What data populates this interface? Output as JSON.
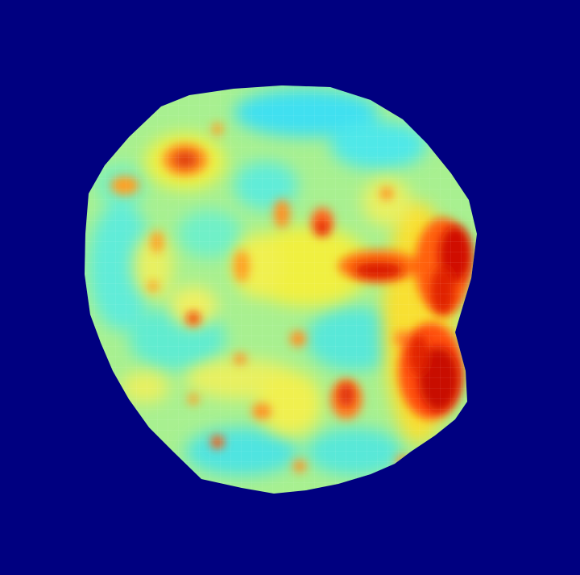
{
  "image": {
    "kind": "jet-colormap heatmap of a circular specimen",
    "colormap": "jet",
    "colors": {
      "background": "#000080",
      "low": "#30e0e8",
      "mid_low": "#90f0a0",
      "mid": "#f0f040",
      "mid_high": "#ffb020",
      "high": "#ff3010",
      "max": "#c80000"
    },
    "labels_visible": false
  }
}
